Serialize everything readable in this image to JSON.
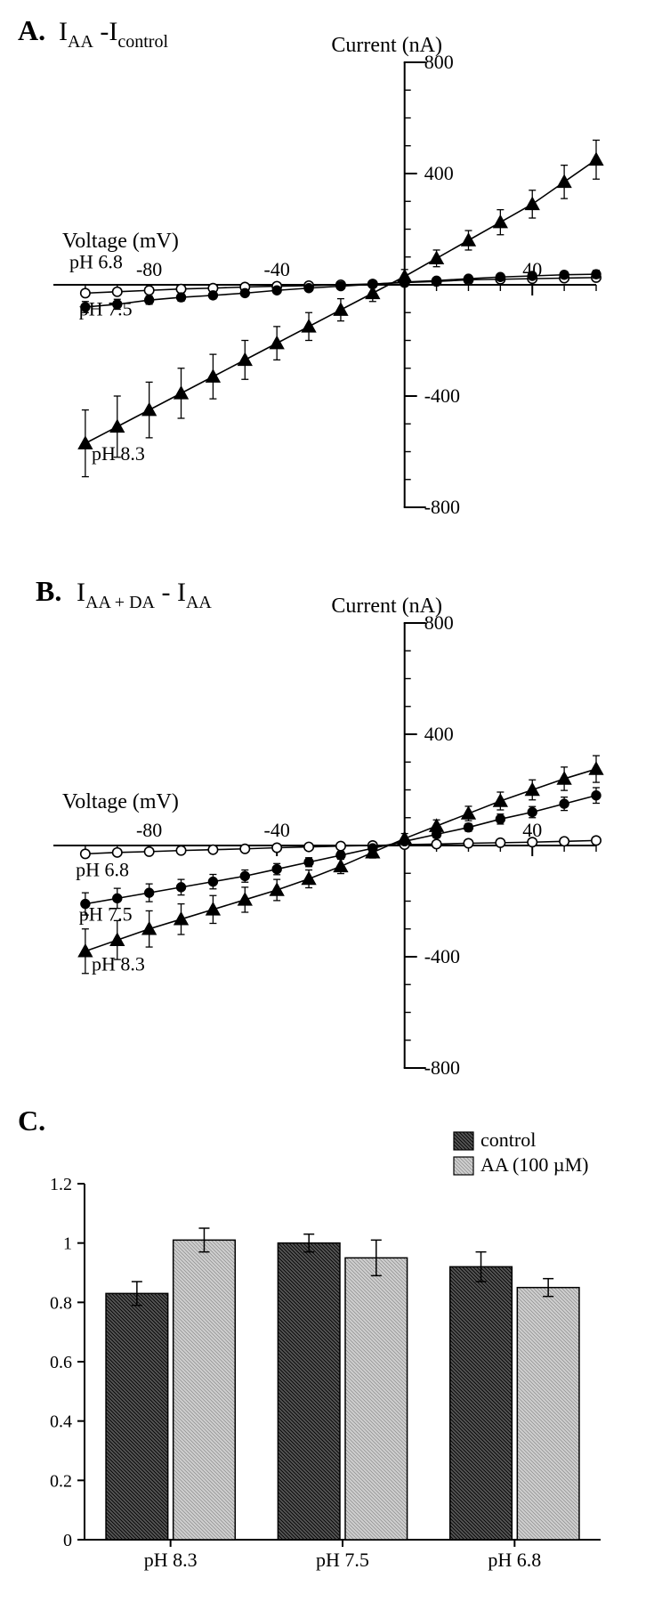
{
  "panelA": {
    "label_prefix": "A.",
    "title_parts": [
      "I",
      "AA",
      " -I",
      "control"
    ],
    "yaxis_label": "Current (nA)",
    "xaxis_label": "Voltage (mV)",
    "xlim": [
      -110,
      60
    ],
    "ylim": [
      -800,
      800
    ],
    "yticks": [
      -800,
      -400,
      400,
      800
    ],
    "xticks_labeled": [
      -80,
      -40,
      40
    ],
    "x_minor": [
      -100,
      -90,
      -70,
      -60,
      -50,
      -30,
      -20,
      -10,
      10,
      20,
      30,
      50,
      60
    ],
    "y_minor": [
      -700,
      -600,
      -500,
      -300,
      -200,
      -100,
      100,
      200,
      300,
      500,
      600,
      700
    ],
    "line_color": "#000000",
    "marker_size": 5.2,
    "linewidth": 1.6,
    "series": [
      {
        "name": "pH 6.8",
        "marker": "open-circle",
        "fill": "#ffffff",
        "stroke": "#000000",
        "label_pos": {
          "x": -105,
          "y": 60
        },
        "data": [
          {
            "x": -100,
            "y": -30,
            "err": 10
          },
          {
            "x": -90,
            "y": -25,
            "err": 10
          },
          {
            "x": -80,
            "y": -20,
            "err": 8
          },
          {
            "x": -70,
            "y": -15,
            "err": 8
          },
          {
            "x": -60,
            "y": -12,
            "err": 6
          },
          {
            "x": -50,
            "y": -8,
            "err": 6
          },
          {
            "x": -40,
            "y": -5,
            "err": 5
          },
          {
            "x": -30,
            "y": -3,
            "err": 5
          },
          {
            "x": -20,
            "y": 0,
            "err": 4
          },
          {
            "x": -10,
            "y": 3,
            "err": 4
          },
          {
            "x": 0,
            "y": 8,
            "err": 5
          },
          {
            "x": 10,
            "y": 12,
            "err": 6
          },
          {
            "x": 20,
            "y": 18,
            "err": 8
          },
          {
            "x": 30,
            "y": 20,
            "err": 8
          },
          {
            "x": 40,
            "y": 22,
            "err": 10
          },
          {
            "x": 50,
            "y": 24,
            "err": 10
          },
          {
            "x": 60,
            "y": 26,
            "err": 12
          }
        ]
      },
      {
        "name": "pH 7.5",
        "marker": "filled-circle",
        "fill": "#000000",
        "stroke": "#000000",
        "label_pos": {
          "x": -102,
          "y": -110
        },
        "data": [
          {
            "x": -100,
            "y": -80,
            "err": 20
          },
          {
            "x": -90,
            "y": -70,
            "err": 18
          },
          {
            "x": -80,
            "y": -55,
            "err": 15
          },
          {
            "x": -70,
            "y": -45,
            "err": 14
          },
          {
            "x": -60,
            "y": -38,
            "err": 12
          },
          {
            "x": -50,
            "y": -30,
            "err": 10
          },
          {
            "x": -40,
            "y": -20,
            "err": 8
          },
          {
            "x": -30,
            "y": -12,
            "err": 8
          },
          {
            "x": -20,
            "y": -5,
            "err": 6
          },
          {
            "x": -10,
            "y": 2,
            "err": 6
          },
          {
            "x": 0,
            "y": 10,
            "err": 6
          },
          {
            "x": 10,
            "y": 15,
            "err": 8
          },
          {
            "x": 20,
            "y": 22,
            "err": 8
          },
          {
            "x": 30,
            "y": 28,
            "err": 10
          },
          {
            "x": 40,
            "y": 32,
            "err": 10
          },
          {
            "x": 50,
            "y": 36,
            "err": 12
          },
          {
            "x": 60,
            "y": 38,
            "err": 14
          }
        ]
      },
      {
        "name": "pH 8.3",
        "marker": "filled-triangle",
        "fill": "#000000",
        "stroke": "#000000",
        "label_pos": {
          "x": -98,
          "y": -630
        },
        "data": [
          {
            "x": -100,
            "y": -570,
            "err": 120
          },
          {
            "x": -90,
            "y": -510,
            "err": 110
          },
          {
            "x": -80,
            "y": -450,
            "err": 100
          },
          {
            "x": -70,
            "y": -390,
            "err": 90
          },
          {
            "x": -60,
            "y": -330,
            "err": 80
          },
          {
            "x": -50,
            "y": -270,
            "err": 70
          },
          {
            "x": -40,
            "y": -210,
            "err": 60
          },
          {
            "x": -30,
            "y": -150,
            "err": 50
          },
          {
            "x": -20,
            "y": -90,
            "err": 40
          },
          {
            "x": -10,
            "y": -30,
            "err": 30
          },
          {
            "x": 0,
            "y": 30,
            "err": 25
          },
          {
            "x": 10,
            "y": 95,
            "err": 30
          },
          {
            "x": 20,
            "y": 160,
            "err": 35
          },
          {
            "x": 30,
            "y": 225,
            "err": 45
          },
          {
            "x": 40,
            "y": 290,
            "err": 50
          },
          {
            "x": 50,
            "y": 370,
            "err": 60
          },
          {
            "x": 60,
            "y": 450,
            "err": 70
          }
        ]
      }
    ]
  },
  "panelB": {
    "label_prefix": "B.",
    "title_parts": [
      "I",
      "AA + DA",
      " - I",
      "AA"
    ],
    "yaxis_label": "Current (nA)",
    "xaxis_label": "Voltage (mV)",
    "xlim": [
      -110,
      60
    ],
    "ylim": [
      -800,
      800
    ],
    "yticks": [
      -800,
      -400,
      400,
      800
    ],
    "xticks_labeled": [
      -80,
      -40,
      40
    ],
    "x_minor": [
      -100,
      -90,
      -70,
      -60,
      -50,
      -30,
      -20,
      -10,
      10,
      20,
      30,
      50,
      60
    ],
    "y_minor": [
      -700,
      -600,
      -500,
      -300,
      -200,
      -100,
      100,
      200,
      300,
      500,
      600,
      700
    ],
    "line_color": "#000000",
    "marker_size": 5.2,
    "linewidth": 1.6,
    "series": [
      {
        "name": "pH 6.8",
        "marker": "open-circle",
        "fill": "#ffffff",
        "stroke": "#000000",
        "label_pos": {
          "x": -103,
          "y": -110
        },
        "data": [
          {
            "x": -100,
            "y": -30,
            "err": 8
          },
          {
            "x": -90,
            "y": -25,
            "err": 8
          },
          {
            "x": -80,
            "y": -22,
            "err": 8
          },
          {
            "x": -70,
            "y": -18,
            "err": 6
          },
          {
            "x": -60,
            "y": -15,
            "err": 6
          },
          {
            "x": -50,
            "y": -12,
            "err": 5
          },
          {
            "x": -40,
            "y": -8,
            "err": 5
          },
          {
            "x": -30,
            "y": -5,
            "err": 5
          },
          {
            "x": -20,
            "y": -2,
            "err": 4
          },
          {
            "x": -10,
            "y": 0,
            "err": 4
          },
          {
            "x": 0,
            "y": 3,
            "err": 4
          },
          {
            "x": 10,
            "y": 5,
            "err": 5
          },
          {
            "x": 20,
            "y": 8,
            "err": 6
          },
          {
            "x": 30,
            "y": 10,
            "err": 6
          },
          {
            "x": 40,
            "y": 12,
            "err": 8
          },
          {
            "x": 50,
            "y": 15,
            "err": 8
          },
          {
            "x": 60,
            "y": 18,
            "err": 10
          }
        ]
      },
      {
        "name": "pH 7.5",
        "marker": "filled-circle",
        "fill": "#000000",
        "stroke": "#000000",
        "label_pos": {
          "x": -102,
          "y": -270
        },
        "data": [
          {
            "x": -100,
            "y": -210,
            "err": 40
          },
          {
            "x": -90,
            "y": -190,
            "err": 36
          },
          {
            "x": -80,
            "y": -170,
            "err": 32
          },
          {
            "x": -70,
            "y": -150,
            "err": 28
          },
          {
            "x": -60,
            "y": -130,
            "err": 26
          },
          {
            "x": -50,
            "y": -110,
            "err": 22
          },
          {
            "x": -40,
            "y": -85,
            "err": 20
          },
          {
            "x": -30,
            "y": -60,
            "err": 16
          },
          {
            "x": -20,
            "y": -35,
            "err": 14
          },
          {
            "x": -10,
            "y": -10,
            "err": 10
          },
          {
            "x": 0,
            "y": 15,
            "err": 10
          },
          {
            "x": 10,
            "y": 40,
            "err": 12
          },
          {
            "x": 20,
            "y": 65,
            "err": 14
          },
          {
            "x": 30,
            "y": 95,
            "err": 18
          },
          {
            "x": 40,
            "y": 120,
            "err": 20
          },
          {
            "x": 50,
            "y": 150,
            "err": 24
          },
          {
            "x": 60,
            "y": 180,
            "err": 28
          }
        ]
      },
      {
        "name": "pH 8.3",
        "marker": "filled-triangle",
        "fill": "#000000",
        "stroke": "#000000",
        "label_pos": {
          "x": -98,
          "y": -450
        },
        "data": [
          {
            "x": -100,
            "y": -380,
            "err": 80
          },
          {
            "x": -90,
            "y": -340,
            "err": 70
          },
          {
            "x": -80,
            "y": -300,
            "err": 65
          },
          {
            "x": -70,
            "y": -265,
            "err": 55
          },
          {
            "x": -60,
            "y": -230,
            "err": 50
          },
          {
            "x": -50,
            "y": -195,
            "err": 45
          },
          {
            "x": -40,
            "y": -160,
            "err": 38
          },
          {
            "x": -30,
            "y": -120,
            "err": 32
          },
          {
            "x": -20,
            "y": -75,
            "err": 26
          },
          {
            "x": -10,
            "y": -25,
            "err": 20
          },
          {
            "x": 0,
            "y": 25,
            "err": 18
          },
          {
            "x": 10,
            "y": 70,
            "err": 22
          },
          {
            "x": 20,
            "y": 115,
            "err": 26
          },
          {
            "x": 30,
            "y": 160,
            "err": 32
          },
          {
            "x": 40,
            "y": 200,
            "err": 36
          },
          {
            "x": 50,
            "y": 240,
            "err": 42
          },
          {
            "x": 60,
            "y": 275,
            "err": 48
          }
        ]
      }
    ]
  },
  "panelC": {
    "label_prefix": "C.",
    "yaxis_label": "",
    "ylim": [
      0,
      1.2
    ],
    "yticks": [
      0,
      0.2,
      0.4,
      0.6,
      0.8,
      1.0,
      1.2
    ],
    "categories": [
      "pH 8.3",
      "pH 7.5",
      "pH 6.8"
    ],
    "legend": [
      {
        "name": "control",
        "pattern": "dark"
      },
      {
        "name": "AA (100 µM)",
        "pattern": "light"
      }
    ],
    "data": {
      "control": {
        "values": [
          0.83,
          1.0,
          0.92
        ],
        "err": [
          0.04,
          0.03,
          0.05
        ],
        "fill": "dark"
      },
      "AA": {
        "values": [
          1.01,
          0.95,
          0.85
        ],
        "err": [
          0.04,
          0.06,
          0.03
        ],
        "fill": "light"
      }
    },
    "bar_width": 0.36,
    "axis_color": "#000000",
    "label_fontsize": 22,
    "tick_fontsize": 20
  },
  "fonts": {
    "panel_label": 32,
    "axis_label": 24,
    "tick": 22,
    "series_label": 22,
    "legend": 22
  },
  "colors": {
    "axis": "#000000",
    "background": "#ffffff"
  }
}
